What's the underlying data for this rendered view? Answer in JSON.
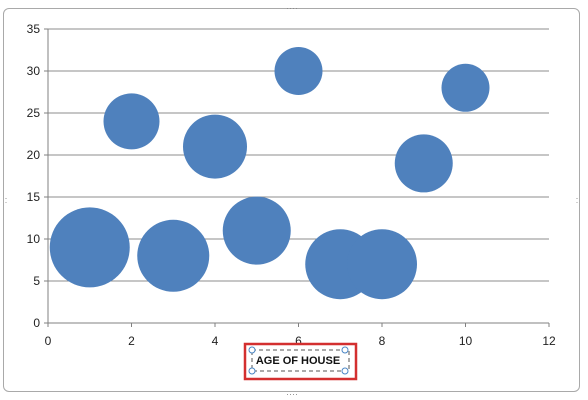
{
  "chart_data": {
    "type": "bubble",
    "title": "",
    "xlabel": "AGE OF HOUSE",
    "ylabel": "",
    "xlim": [
      0,
      12
    ],
    "ylim": [
      0,
      35
    ],
    "x_ticks": [
      0,
      2,
      4,
      6,
      8,
      10,
      12
    ],
    "y_ticks": [
      0,
      5,
      10,
      15,
      20,
      25,
      30,
      35
    ],
    "grid": "horizontal",
    "legend": "none",
    "bubble_color": "#4f81bd",
    "points": [
      {
        "x": 1,
        "y": 9,
        "size": 40
      },
      {
        "x": 2,
        "y": 24,
        "size": 28
      },
      {
        "x": 3,
        "y": 8,
        "size": 36
      },
      {
        "x": 4,
        "y": 21,
        "size": 32
      },
      {
        "x": 5,
        "y": 11,
        "size": 34
      },
      {
        "x": 6,
        "y": 30,
        "size": 24
      },
      {
        "x": 7,
        "y": 7,
        "size": 35
      },
      {
        "x": 8,
        "y": 7,
        "size": 35
      },
      {
        "x": 9,
        "y": 19,
        "size": 29
      },
      {
        "x": 10,
        "y": 28,
        "size": 24
      }
    ]
  },
  "colors": {
    "highlight": "#d32f2f",
    "selection_handle": "#4a86c5",
    "grid": "#8c8c8c"
  }
}
